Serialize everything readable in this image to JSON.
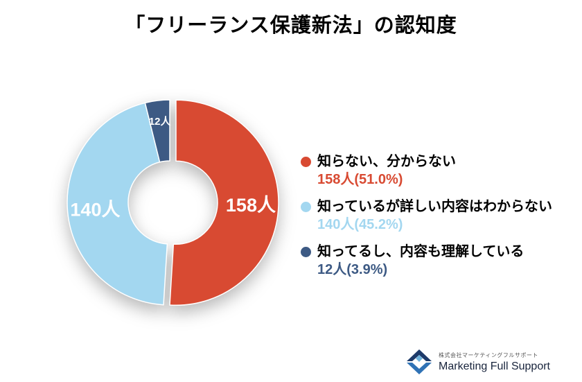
{
  "title": "「フリーランス保護新法」の認知度",
  "chart_data": {
    "type": "pie",
    "donut": true,
    "title": "「フリーランス保護新法」の認知度",
    "total": 310,
    "start_angle_deg": 0,
    "direction": "clockwise",
    "legend_position": "right",
    "slices": [
      {
        "label": "知らない、分からない",
        "value": 158,
        "percent": 51.0,
        "slice_label": "158人",
        "legend_value": "158人(51.0%)",
        "color": "#d84a32",
        "exploded": true
      },
      {
        "label": "知っているが詳しい内容はわからない",
        "value": 140,
        "percent": 45.2,
        "slice_label": "140人",
        "legend_value": "140人(45.2%)",
        "color": "#a3d7f0",
        "exploded": false
      },
      {
        "label": "知ってるし、内容も理解している",
        "value": 12,
        "percent": 3.9,
        "slice_label": "12人",
        "legend_value": "12人(3.9%)",
        "color": "#3d5a84",
        "exploded": false
      }
    ]
  },
  "footer": {
    "company_small": "株式会社マーケティングフルサポート",
    "company_name": "Marketing Full Support"
  }
}
